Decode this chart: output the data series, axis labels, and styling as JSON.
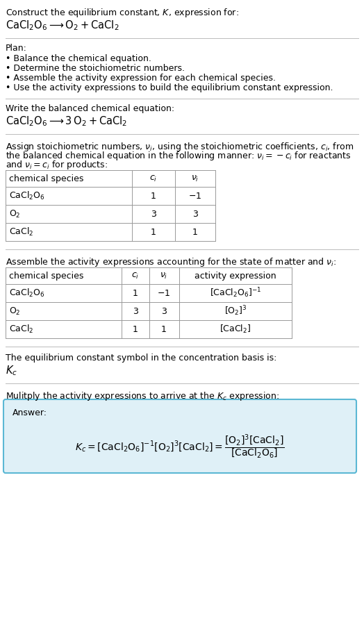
{
  "bg_color": "#ffffff",
  "text_color": "#000000",
  "title_line1": "Construct the equilibrium constant, $K$, expression for:",
  "title_line2_plain": "CaCl",
  "plan_header": "Plan:",
  "plan_items": [
    "• Balance the chemical equation.",
    "• Determine the stoichiometric numbers.",
    "• Assemble the activity expression for each chemical species.",
    "• Use the activity expressions to build the equilibrium constant expression."
  ],
  "balanced_header": "Write the balanced chemical equation:",
  "stoich_intro1": "Assign stoichiometric numbers, $\\nu_i$, using the stoichiometric coefficients, $c_i$, from",
  "stoich_intro2": "the balanced chemical equation in the following manner: $\\nu_i = -c_i$ for reactants",
  "stoich_intro3": "and $\\nu_i = c_i$ for products:",
  "table1_headers": [
    "chemical species",
    "$c_i$",
    "$\\nu_i$"
  ],
  "table1_rows": [
    [
      "$\\mathrm{CaCl_2O_6}$",
      "1",
      "$-1$"
    ],
    [
      "$\\mathrm{O_2}$",
      "3",
      "3"
    ],
    [
      "$\\mathrm{CaCl_2}$",
      "1",
      "1"
    ]
  ],
  "assemble_intro": "Assemble the activity expressions accounting for the state of matter and $\\nu_i$:",
  "table2_headers": [
    "chemical species",
    "$c_i$",
    "$\\nu_i$",
    "activity expression"
  ],
  "table2_rows": [
    [
      "$\\mathrm{CaCl_2O_6}$",
      "1",
      "$-1$",
      "$[\\mathrm{CaCl_2O_6}]^{-1}$"
    ],
    [
      "$\\mathrm{O_2}$",
      "3",
      "3",
      "$[\\mathrm{O_2}]^3$"
    ],
    [
      "$\\mathrm{CaCl_2}$",
      "1",
      "1",
      "$[\\mathrm{CaCl_2}]$"
    ]
  ],
  "kc_text": "The equilibrium constant symbol in the concentration basis is:",
  "kc_symbol": "$K_c$",
  "multiply_text": "Mulitply the activity expressions to arrive at the $K_c$ expression:",
  "answer_box_color": "#dff0f7",
  "answer_border_color": "#5bb8d4",
  "answer_label": "Answer:",
  "table_line_color": "#999999",
  "separator_color": "#bbbbbb"
}
